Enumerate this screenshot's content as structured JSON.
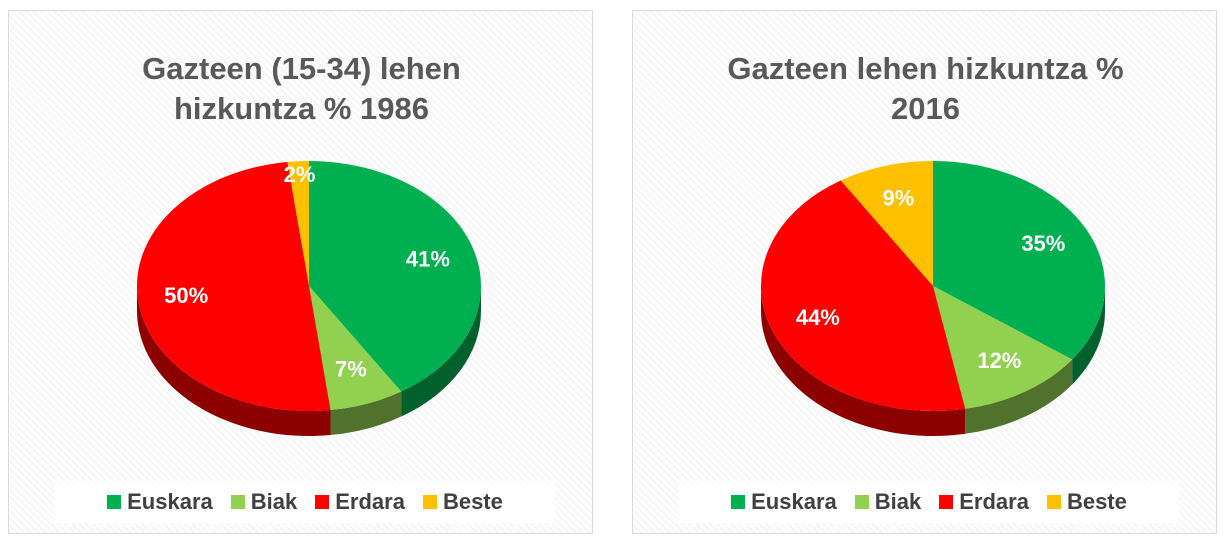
{
  "chart_data": [
    {
      "type": "pie",
      "title": "Gazteen (15-34) lehen hizkuntza % 1986",
      "categories": [
        "Euskara",
        "Biak",
        "Erdara",
        "Beste"
      ],
      "values": [
        41,
        7,
        50,
        2
      ],
      "value_labels": [
        "41%",
        "7%",
        "50%",
        "2%"
      ],
      "colors": [
        "#00b050",
        "#92d050",
        "#ff0000",
        "#ffc000"
      ]
    },
    {
      "type": "pie",
      "title": "Gazteen lehen hizkuntza % 2016",
      "categories": [
        "Euskara",
        "Biak",
        "Erdara",
        "Beste"
      ],
      "values": [
        35,
        12,
        44,
        9
      ],
      "value_labels": [
        "35%",
        "12%",
        "44%",
        "9%"
      ],
      "colors": [
        "#00b050",
        "#92d050",
        "#ff0000",
        "#ffc000"
      ]
    }
  ]
}
